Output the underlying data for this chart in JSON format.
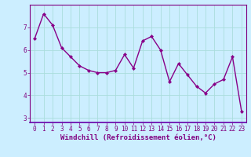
{
  "x": [
    0,
    1,
    2,
    3,
    4,
    5,
    6,
    7,
    8,
    9,
    10,
    11,
    12,
    13,
    14,
    15,
    16,
    17,
    18,
    19,
    20,
    21,
    22,
    23
  ],
  "y": [
    6.5,
    7.6,
    7.1,
    6.1,
    5.7,
    5.3,
    5.1,
    5.0,
    5.0,
    5.1,
    5.8,
    5.2,
    6.4,
    6.6,
    6.0,
    4.6,
    5.4,
    4.9,
    4.4,
    4.1,
    4.5,
    4.7,
    5.7,
    3.3
  ],
  "line_color": "#880088",
  "marker": "D",
  "marker_size": 2.2,
  "bg_color": "#cceeff",
  "grid_color": "#aadddd",
  "xlabel": "Windchill (Refroidissement éolien,°C)",
  "ylim": [
    2.8,
    8.0
  ],
  "xlim": [
    -0.5,
    23.5
  ],
  "yticks": [
    3,
    4,
    5,
    6,
    7
  ],
  "xticks": [
    0,
    1,
    2,
    3,
    4,
    5,
    6,
    7,
    8,
    9,
    10,
    11,
    12,
    13,
    14,
    15,
    16,
    17,
    18,
    19,
    20,
    21,
    22,
    23
  ],
  "tick_fontsize": 5.5,
  "xlabel_fontsize": 6.5,
  "line_width": 1.0,
  "spine_color": "#800080",
  "tick_color": "#800080"
}
